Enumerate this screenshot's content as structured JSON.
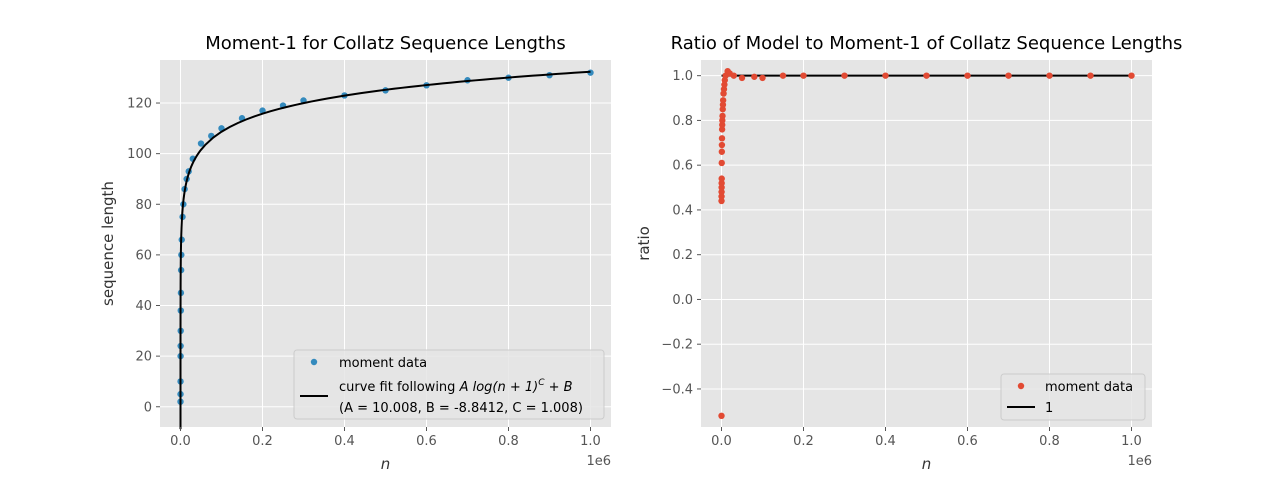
{
  "chart_data": [
    {
      "type": "scatter",
      "title": "Moment-1 for Collatz Sequence Lengths",
      "xlabel": "n",
      "ylabel": "sequence length",
      "x_offset_label": "1e6",
      "xlim": [
        -50000,
        1050000
      ],
      "ylim": [
        -8,
        137
      ],
      "xticks": [
        0,
        200000,
        400000,
        600000,
        800000,
        1000000
      ],
      "xtick_labels": [
        "0.0",
        "0.2",
        "0.4",
        "0.6",
        "0.8",
        "1.0"
      ],
      "yticks": [
        0,
        20,
        40,
        60,
        80,
        100,
        120
      ],
      "ytick_labels": [
        "0",
        "20",
        "40",
        "60",
        "80",
        "100",
        "120"
      ],
      "grid": true,
      "legend_position": "lower-right",
      "fit_model": {
        "A": 10.008,
        "B": -8.8412,
        "C": 1.008
      },
      "series": [
        {
          "name": "moment data",
          "kind": "points",
          "color": "#348ABD",
          "x": [
            1,
            50,
            100,
            200,
            300,
            500,
            700,
            1000,
            1500,
            2000,
            3000,
            5000,
            7000,
            10000,
            15000,
            20000,
            30000,
            50000,
            75000,
            100000,
            150000,
            200000,
            250000,
            300000,
            400000,
            500000,
            600000,
            700000,
            800000,
            900000,
            1000000
          ],
          "y": [
            2,
            5,
            10,
            20,
            24,
            30,
            38,
            45,
            54,
            60,
            66,
            75,
            80,
            86,
            90,
            93,
            98,
            104,
            107,
            110,
            114,
            117,
            119,
            121,
            123,
            125,
            127,
            129,
            130,
            131,
            132
          ]
        },
        {
          "name": "curve fit following $A\\log(n+1)^C + B$\n(A = 10.008, B = -8.8412, C = 1.008)",
          "kind": "line",
          "color": "#000000"
        }
      ],
      "legend": [
        {
          "marker": "dot",
          "color": "#348ABD",
          "label": "moment data"
        },
        {
          "marker": "line",
          "color": "#000000",
          "label_prefix": "curve fit following ",
          "label_formula": "A log(n + 1)",
          "label_sup": "C",
          "label_suffix": " + B",
          "label_line2": "(A = 10.008, B = -8.8412, C = 1.008)"
        }
      ]
    },
    {
      "type": "scatter",
      "title": "Ratio of Model to Moment-1 of Collatz Sequence Lengths",
      "xlabel": "n",
      "ylabel": "ratio",
      "x_offset_label": "1e6",
      "xlim": [
        -50000,
        1050000
      ],
      "ylim": [
        -0.57,
        1.07
      ],
      "xticks": [
        0,
        200000,
        400000,
        600000,
        800000,
        1000000
      ],
      "xtick_labels": [
        "0.0",
        "0.2",
        "0.4",
        "0.6",
        "0.8",
        "1.0"
      ],
      "yticks": [
        -0.4,
        -0.2,
        0.0,
        0.2,
        0.4,
        0.6,
        0.8,
        1.0
      ],
      "ytick_labels": [
        "−0.4",
        "−0.2",
        "0.0",
        "0.2",
        "0.4",
        "0.6",
        "0.8",
        "1.0"
      ],
      "grid": true,
      "legend_position": "lower-right",
      "series": [
        {
          "name": "moment data",
          "kind": "points",
          "color": "#E24A33",
          "x": [
            10,
            60,
            120,
            200,
            300,
            400,
            500,
            600,
            800,
            1000,
            1200,
            1500,
            1800,
            2000,
            2500,
            3000,
            3500,
            4000,
            5000,
            6000,
            7000,
            8000,
            10000,
            15000,
            20000,
            30000,
            50000,
            80000,
            100000,
            150000,
            200000,
            300000,
            400000,
            500000,
            600000,
            700000,
            800000,
            900000,
            1000000
          ],
          "y": [
            -0.52,
            0.44,
            0.46,
            0.48,
            0.5,
            0.52,
            0.54,
            0.61,
            0.66,
            0.69,
            0.72,
            0.76,
            0.78,
            0.8,
            0.82,
            0.85,
            0.87,
            0.89,
            0.92,
            0.94,
            0.96,
            0.98,
            1.0,
            1.02,
            1.01,
            1.0,
            0.99,
            0.995,
            0.99,
            1.0,
            1.0,
            1.0,
            1.0,
            1.0,
            1.0,
            1.0,
            1.0,
            1.0,
            1.0
          ]
        },
        {
          "name": "1",
          "kind": "line",
          "color": "#000000",
          "y_const": 1.0
        }
      ],
      "legend": [
        {
          "marker": "dot",
          "color": "#E24A33",
          "label": "moment data"
        },
        {
          "marker": "line",
          "color": "#000000",
          "label": "1"
        }
      ]
    }
  ]
}
